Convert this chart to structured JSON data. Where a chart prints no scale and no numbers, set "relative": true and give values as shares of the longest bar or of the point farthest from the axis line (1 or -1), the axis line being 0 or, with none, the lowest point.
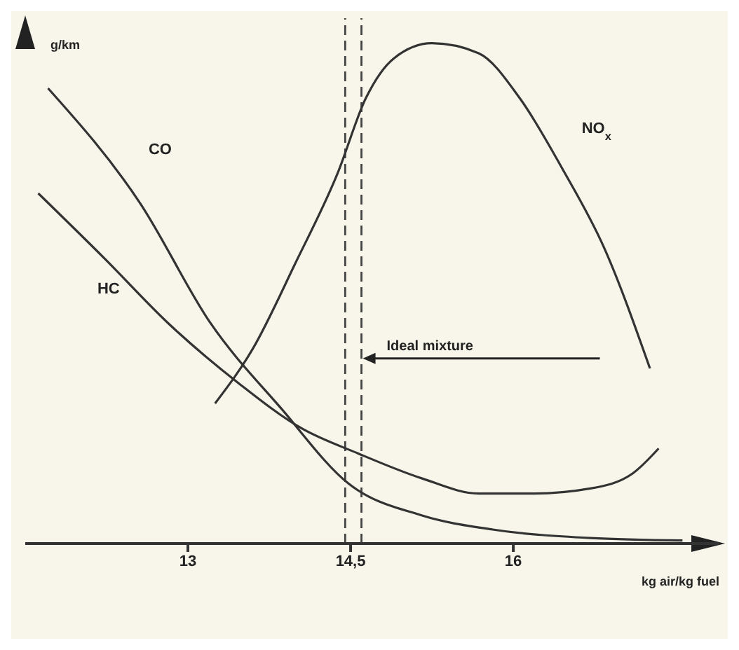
{
  "chart_data": {
    "type": "line",
    "relative": true,
    "ylabel": "g/km",
    "xlabel": "kg air/kg fuel",
    "xlim": [
      11.5,
      17.9
    ],
    "xticks": [
      13,
      {
        "value": 14.5,
        "label": "14,5"
      },
      16
    ],
    "grid": false,
    "legend": false,
    "marker": "none",
    "line_style": "solid",
    "tick_labels": "x",
    "series": [
      {
        "name": "CO",
        "color": "#333333",
        "x": [
          11.71,
          12.56,
          13.21,
          13.86,
          14.48,
          15.16,
          15.81,
          16.71,
          17.56
        ],
        "values": [
          0.91,
          0.68,
          0.44,
          0.27,
          0.12,
          0.056,
          0.028,
          0.011,
          0.006
        ]
      },
      {
        "name": "HC",
        "color": "#333333",
        "x": [
          11.62,
          12.23,
          12.82,
          13.47,
          14.05,
          14.57,
          15.16,
          15.68,
          16.19,
          16.71,
          17.1,
          17.34
        ],
        "values": [
          0.7,
          0.57,
          0.44,
          0.32,
          0.23,
          0.18,
          0.13,
          0.1,
          0.1,
          0.11,
          0.14,
          0.19
        ]
      },
      {
        "name": "NO$_{x}$",
        "color": "#333333",
        "x": [
          13.25,
          13.6,
          13.99,
          14.38,
          14.64,
          14.9,
          15.25,
          15.68,
          16.06,
          16.45,
          16.84,
          17.26
        ],
        "values": [
          0.28,
          0.39,
          0.56,
          0.74,
          0.89,
          0.97,
          1,
          0.98,
          0.89,
          0.75,
          0.59,
          0.35
        ]
      }
    ],
    "ref_lines": [
      {
        "axis": "x",
        "value": 14.45,
        "line_style": "dashed",
        "color": "#444444"
      },
      {
        "axis": "x",
        "value": 14.6,
        "line_style": "dashed",
        "color": "#444444",
        "label": "Ideal mixture"
      }
    ]
  }
}
